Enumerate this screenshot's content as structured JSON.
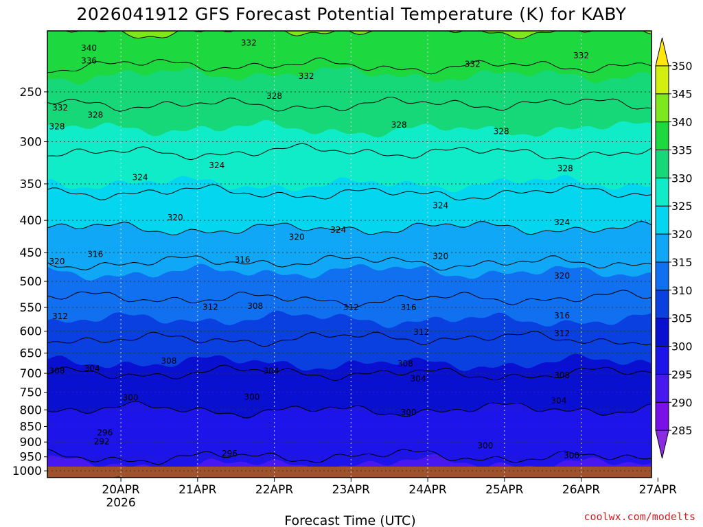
{
  "chart_data": {
    "type": "heatmap",
    "title": "2026041912 GFS Forecast Potential Temperature (K) for KABY",
    "xlabel": "Forecast Time (UTC)",
    "ylabel": "",
    "y_axis": {
      "ticks": [
        250,
        300,
        350,
        400,
        450,
        500,
        550,
        600,
        650,
        700,
        750,
        800,
        850,
        900,
        950,
        1000
      ],
      "range": [
        200,
        1025
      ],
      "scale": "log-pressure",
      "units": "hPa"
    },
    "x_axis": {
      "range_hours": [
        -11,
        178
      ],
      "ticks": [
        {
          "label": "20APR",
          "hour": 12,
          "sub": "2026"
        },
        {
          "label": "21APR",
          "hour": 36,
          "sub": ""
        },
        {
          "label": "22APR",
          "hour": 60,
          "sub": ""
        },
        {
          "label": "23APR",
          "hour": 84,
          "sub": ""
        },
        {
          "label": "24APR",
          "hour": 108,
          "sub": ""
        },
        {
          "label": "25APR",
          "hour": 132,
          "sub": ""
        },
        {
          "label": "26APR",
          "hour": 156,
          "sub": ""
        },
        {
          "label": "27APR",
          "hour": 180,
          "sub": ""
        }
      ]
    },
    "colorbar": {
      "min": 280,
      "max": 355,
      "levels": [
        285,
        290,
        295,
        300,
        305,
        310,
        315,
        320,
        325,
        330,
        335,
        340,
        345,
        350
      ],
      "colors": [
        "#8a2be2",
        "#7a10e8",
        "#4818f0",
        "#1c14e8",
        "#0a10d0",
        "#0a3fe0",
        "#1070f0",
        "#10a8f6",
        "#04d6f0",
        "#10ecc8",
        "#16d878",
        "#1ed840",
        "#7ee81e",
        "#d2ef10",
        "#ffe60c"
      ]
    },
    "profile_points": [
      {
        "p": 1000,
        "theta": 294
      },
      {
        "p": 950,
        "theta": 296
      },
      {
        "p": 900,
        "theta": 297
      },
      {
        "p": 850,
        "theta": 298
      },
      {
        "p": 800,
        "theta": 300
      },
      {
        "p": 750,
        "theta": 302
      },
      {
        "p": 700,
        "theta": 304
      },
      {
        "p": 650,
        "theta": 306
      },
      {
        "p": 600,
        "theta": 309
      },
      {
        "p": 550,
        "theta": 311
      },
      {
        "p": 500,
        "theta": 314
      },
      {
        "p": 450,
        "theta": 317
      },
      {
        "p": 400,
        "theta": 321
      },
      {
        "p": 350,
        "theta": 325
      },
      {
        "p": 300,
        "theta": 329
      },
      {
        "p": 250,
        "theta": 333
      },
      {
        "p": 200,
        "theta": 340
      }
    ],
    "contour_labels": [
      {
        "text": "340",
        "hour": 2,
        "p": 213
      },
      {
        "text": "336",
        "hour": 2,
        "p": 223
      },
      {
        "text": "332",
        "hour": 52,
        "p": 209
      },
      {
        "text": "332",
        "hour": 70,
        "p": 236
      },
      {
        "text": "332",
        "hour": 122,
        "p": 226
      },
      {
        "text": "332",
        "hour": 156,
        "p": 219
      },
      {
        "text": "332",
        "hour": -7,
        "p": 265
      },
      {
        "text": "328",
        "hour": 4,
        "p": 272
      },
      {
        "text": "328",
        "hour": -14,
        "p": 284
      },
      {
        "text": "328",
        "hour": 60,
        "p": 254
      },
      {
        "text": "328",
        "hour": 99,
        "p": 282
      },
      {
        "text": "328",
        "hour": 131,
        "p": 289
      },
      {
        "text": "328",
        "hour": 151,
        "p": 331
      },
      {
        "text": "324",
        "hour": 18,
        "p": 342
      },
      {
        "text": "324",
        "hour": 42,
        "p": 327
      },
      {
        "text": "324",
        "hour": 80,
        "p": 414
      },
      {
        "text": "324",
        "hour": 112,
        "p": 379
      },
      {
        "text": "324",
        "hour": 150,
        "p": 403
      },
      {
        "text": "320",
        "hour": 29,
        "p": 396
      },
      {
        "text": "320",
        "hour": 67,
        "p": 425
      },
      {
        "text": "320",
        "hour": -16,
        "p": 465
      },
      {
        "text": "320",
        "hour": 112,
        "p": 456
      },
      {
        "text": "320",
        "hour": 150,
        "p": 490
      },
      {
        "text": "316",
        "hour": 4,
        "p": 453
      },
      {
        "text": "316",
        "hour": 50,
        "p": 462
      },
      {
        "text": "316",
        "hour": 102,
        "p": 550
      },
      {
        "text": "316",
        "hour": 150,
        "p": 567
      },
      {
        "text": "312",
        "hour": -7,
        "p": 568
      },
      {
        "text": "312",
        "hour": 40,
        "p": 549
      },
      {
        "text": "312",
        "hour": 84,
        "p": 550
      },
      {
        "text": "312",
        "hour": 106,
        "p": 602
      },
      {
        "text": "312",
        "hour": 150,
        "p": 605
      },
      {
        "text": "308",
        "hour": 54,
        "p": 547
      },
      {
        "text": "308",
        "hour": 27,
        "p": 669
      },
      {
        "text": "308",
        "hour": -11,
        "p": 694
      },
      {
        "text": "308",
        "hour": 101,
        "p": 676
      },
      {
        "text": "308",
        "hour": 150,
        "p": 705
      },
      {
        "text": "304",
        "hour": 3,
        "p": 688
      },
      {
        "text": "304",
        "hour": 59,
        "p": 694
      },
      {
        "text": "304",
        "hour": 105,
        "p": 714
      },
      {
        "text": "304",
        "hour": 149,
        "p": 774
      },
      {
        "text": "300",
        "hour": 15,
        "p": 765
      },
      {
        "text": "300",
        "hour": 53,
        "p": 763
      },
      {
        "text": "300",
        "hour": 102,
        "p": 808
      },
      {
        "text": "300",
        "hour": 126,
        "p": 912
      },
      {
        "text": "300",
        "hour": 153,
        "p": 946
      },
      {
        "text": "296",
        "hour": 7,
        "p": 870
      },
      {
        "text": "296",
        "hour": 46,
        "p": 939
      },
      {
        "text": "292",
        "hour": 6,
        "p": 898
      }
    ]
  },
  "credit": "coolwx.com/modelts"
}
